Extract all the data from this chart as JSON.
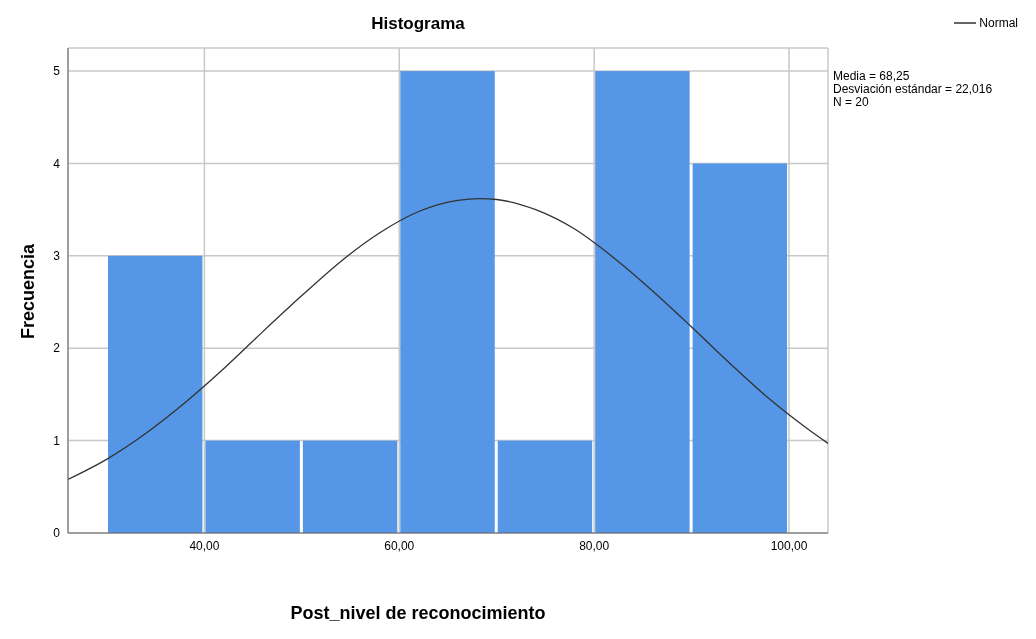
{
  "chart_data": {
    "type": "histogram",
    "title": "Histograma",
    "xlabel": "Post_nivel de reconocimiento",
    "ylabel": "Frecuencia",
    "bins": [
      30,
      40,
      50,
      60,
      70,
      80,
      90,
      100
    ],
    "values": [
      3,
      1,
      1,
      5,
      1,
      5,
      4
    ],
    "color": "#5596e6",
    "xlim": [
      26,
      104
    ],
    "xticks": [
      {
        "value": 40,
        "label": "40,00"
      },
      {
        "value": 60,
        "label": "60,00"
      },
      {
        "value": 80,
        "label": "80,00"
      },
      {
        "value": 100,
        "label": "100,00"
      }
    ],
    "ylim": [
      0,
      5.25
    ],
    "yticks": [
      0,
      1,
      2,
      3,
      4,
      5
    ],
    "grid": true,
    "legend": "top right",
    "series": [
      {
        "name": "Normal",
        "type": "line",
        "color": "#333333",
        "x": [
          26,
          30,
          34,
          38,
          42,
          46,
          50,
          54,
          58,
          62,
          66,
          68.25,
          70,
          74,
          78,
          82,
          86,
          90,
          94,
          98,
          102,
          104
        ],
        "values": [
          0.58,
          0.8,
          1.08,
          1.41,
          1.78,
          2.18,
          2.57,
          2.94,
          3.25,
          3.48,
          3.6,
          3.62,
          3.61,
          3.5,
          3.29,
          2.98,
          2.62,
          2.23,
          1.83,
          1.45,
          1.12,
          0.97
        ]
      }
    ],
    "annotations": [
      "Media = 68,25",
      "Desviación estándar = 22,016",
      "N = 20"
    ]
  }
}
